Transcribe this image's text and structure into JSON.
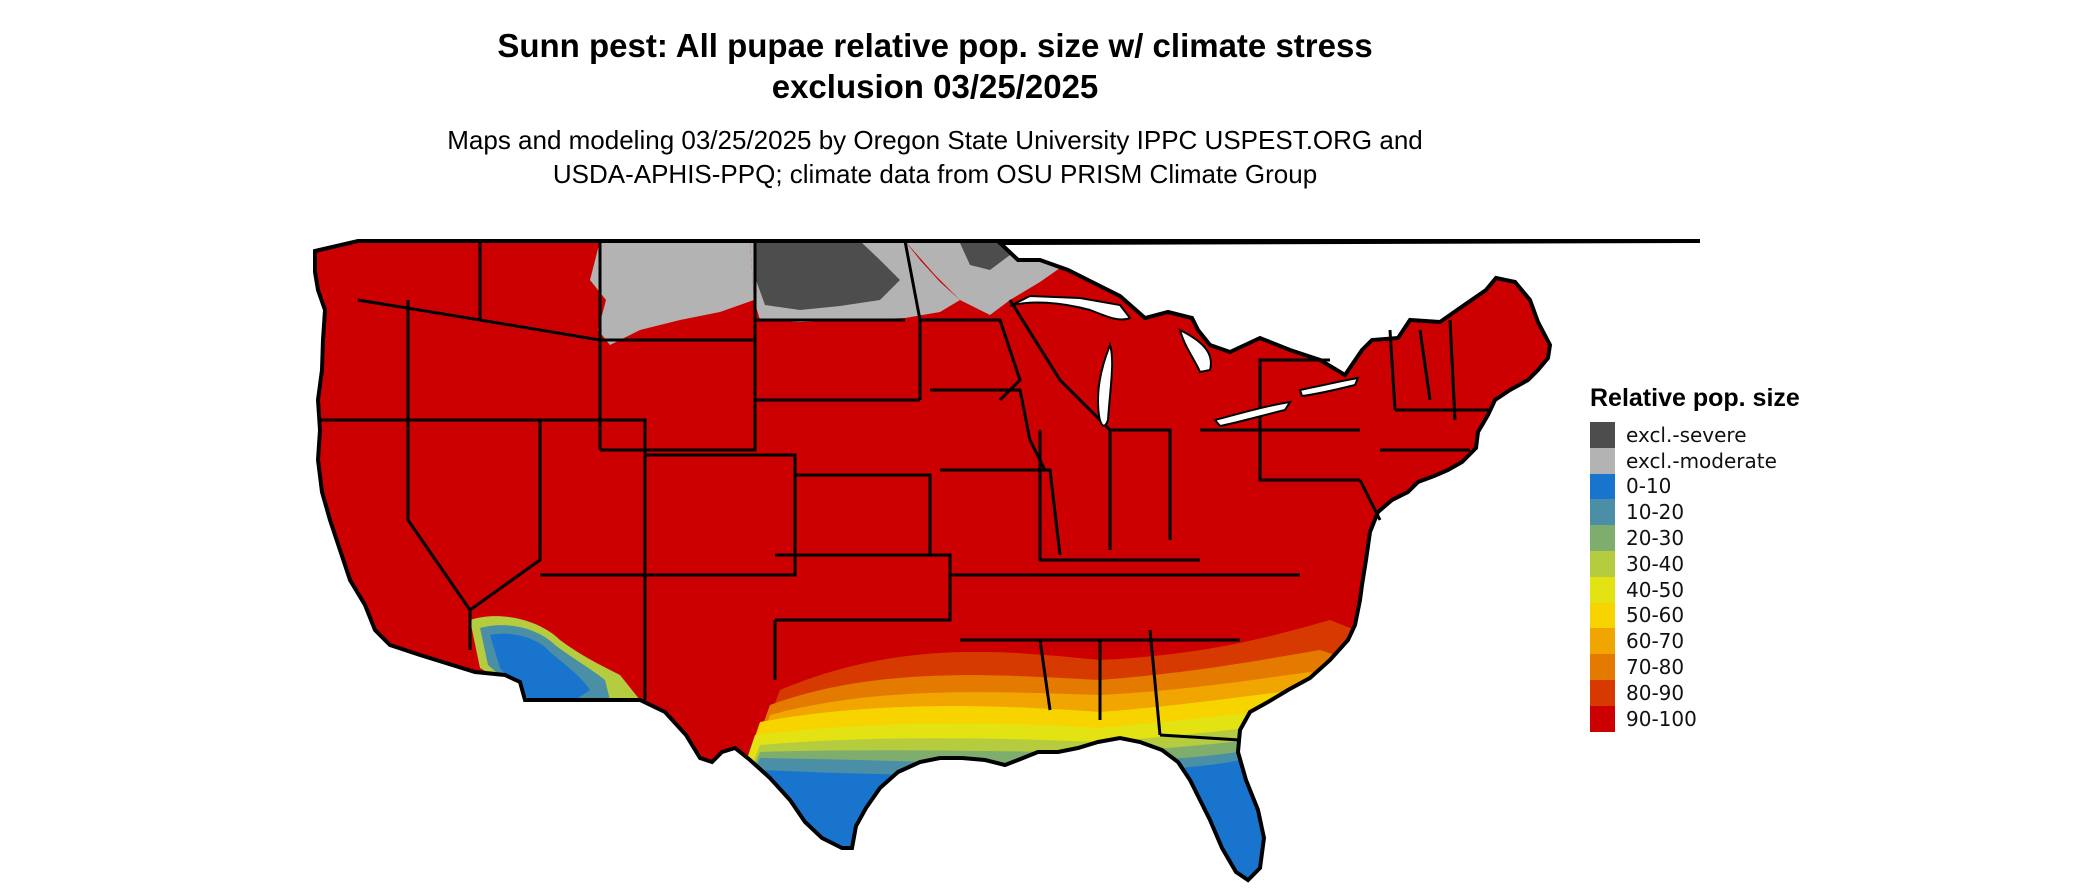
{
  "title": {
    "line1": "Sunn pest: All pupae relative pop. size w/ climate stress",
    "line2": "exclusion 03/25/2025"
  },
  "subtitle": {
    "line1": "Maps and modeling 03/25/2025 by Oregon State University IPPC USPEST.ORG and",
    "line2": "USDA-APHIS-PPQ; climate data from OSU PRISM Climate Group"
  },
  "legend": {
    "title": "Relative pop. size",
    "items": [
      {
        "label": "excl.-severe",
        "color": "#4d4d4d"
      },
      {
        "label": "excl.-moderate",
        "color": "#b3b3b3"
      },
      {
        "label": "0-10",
        "color": "#1874cd"
      },
      {
        "label": "10-20",
        "color": "#4a8fa6"
      },
      {
        "label": "20-30",
        "color": "#7fad6e"
      },
      {
        "label": "30-40",
        "color": "#b4cc3d"
      },
      {
        "label": "40-50",
        "color": "#e3e313"
      },
      {
        "label": "50-60",
        "color": "#f7d400"
      },
      {
        "label": "60-70",
        "color": "#f0a500"
      },
      {
        "label": "70-80",
        "color": "#e57a00"
      },
      {
        "label": "80-90",
        "color": "#d63a00"
      },
      {
        "label": "90-100",
        "color": "#cc0000"
      }
    ]
  },
  "map": {
    "region": "Contiguous United States",
    "base_color": "#cc0000",
    "border_color": "#000000"
  }
}
